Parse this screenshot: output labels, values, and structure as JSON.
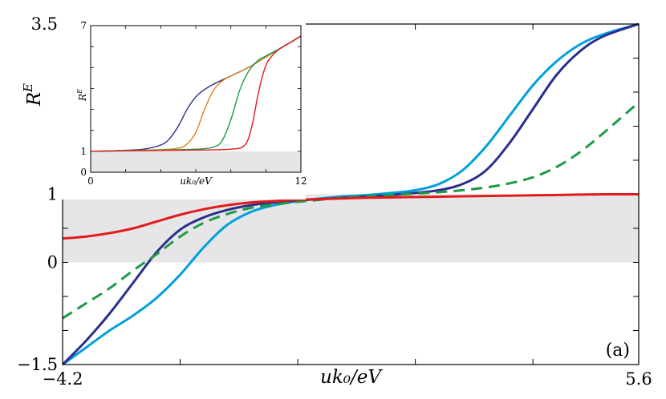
{
  "chart_data": [
    {
      "type": "line",
      "xlabel": "uk₀/eV",
      "ylabel": "R",
      "ylabel_sup": "E",
      "xlim": [
        -4.2,
        5.6
      ],
      "ylim": [
        -1.5,
        3.5
      ],
      "xtick_labels": [
        "−4.2",
        "5.6"
      ],
      "ytick_labels": [
        "−1.5",
        "0",
        "1",
        "3.5"
      ],
      "shaded_band": [
        0,
        1
      ],
      "shade_color": "#e6e6e8",
      "panel_label": "(a)",
      "series": [
        {
          "color": "#00a0dc",
          "dash": "solid",
          "x": [
            -4.2,
            -3.8,
            -3.4,
            -3.0,
            -2.6,
            -2.2,
            -1.8,
            -1.4,
            -1.0,
            -0.6,
            -0.2,
            0.2,
            0.6,
            1.0,
            1.4,
            1.8,
            2.2,
            2.6,
            3.0,
            3.4,
            3.8,
            4.2,
            4.6,
            5.0,
            5.6
          ],
          "y": [
            -1.5,
            -1.25,
            -1.0,
            -0.78,
            -0.52,
            -0.18,
            0.22,
            0.55,
            0.74,
            0.84,
            0.9,
            0.94,
            0.97,
            0.99,
            1.02,
            1.06,
            1.15,
            1.35,
            1.7,
            2.15,
            2.6,
            2.95,
            3.2,
            3.35,
            3.5
          ]
        },
        {
          "color": "#2b2f8c",
          "dash": "solid",
          "x": [
            -4.2,
            -3.8,
            -3.4,
            -3.0,
            -2.6,
            -2.2,
            -1.8,
            -1.4,
            -1.0,
            -0.6,
            -0.2,
            0.2,
            0.6,
            1.0,
            1.4,
            1.8,
            2.2,
            2.6,
            3.0,
            3.4,
            3.8,
            4.2,
            4.6,
            5.0,
            5.6
          ],
          "y": [
            -1.5,
            -1.15,
            -0.75,
            -0.3,
            0.15,
            0.48,
            0.66,
            0.77,
            0.84,
            0.88,
            0.91,
            0.93,
            0.95,
            0.97,
            0.99,
            1.02,
            1.06,
            1.15,
            1.35,
            1.75,
            2.25,
            2.75,
            3.1,
            3.32,
            3.5
          ]
        },
        {
          "color": "#1d9a47",
          "dash": "dashed",
          "x": [
            -4.2,
            -3.8,
            -3.4,
            -3.0,
            -2.6,
            -2.2,
            -1.8,
            -1.4,
            -1.0,
            -0.6,
            -0.2,
            0.2,
            0.6,
            1.0,
            1.4,
            1.8,
            2.2,
            2.6,
            3.0,
            3.4,
            3.8,
            4.2,
            4.6,
            5.0,
            5.6
          ],
          "y": [
            -0.82,
            -0.6,
            -0.38,
            -0.12,
            0.12,
            0.38,
            0.58,
            0.71,
            0.8,
            0.85,
            0.89,
            0.92,
            0.95,
            0.97,
            0.99,
            1.01,
            1.03,
            1.06,
            1.1,
            1.16,
            1.25,
            1.4,
            1.62,
            1.9,
            2.35
          ]
        },
        {
          "color": "#e41a1c",
          "dash": "solid",
          "x": [
            -4.2,
            -3.8,
            -3.4,
            -3.0,
            -2.6,
            -2.2,
            -1.8,
            -1.4,
            -1.0,
            -0.6,
            -0.2,
            0.2,
            0.6,
            1.0,
            1.4,
            1.8,
            2.2,
            2.6,
            3.0,
            3.4,
            3.8,
            4.2,
            4.6,
            5.0,
            5.6
          ],
          "y": [
            0.35,
            0.38,
            0.43,
            0.5,
            0.6,
            0.7,
            0.78,
            0.84,
            0.88,
            0.9,
            0.92,
            0.93,
            0.94,
            0.95,
            0.955,
            0.96,
            0.965,
            0.97,
            0.975,
            0.98,
            0.985,
            0.99,
            0.995,
            1.0,
            1.0
          ]
        }
      ]
    },
    {
      "type": "line",
      "xlabel": "uk₀/eV",
      "ylabel": "R",
      "ylabel_sup": "E",
      "xlim": [
        0,
        12
      ],
      "ylim": [
        0,
        7
      ],
      "xtick_labels": [
        "0",
        "12"
      ],
      "ytick_labels": [
        "0",
        "1",
        "7"
      ],
      "shaded_band": [
        0,
        1
      ],
      "series": [
        {
          "color": "#2b2f8c",
          "x": [
            0,
            1,
            2,
            3,
            4,
            4.5,
            5,
            5.5,
            6,
            6.5,
            7,
            8,
            9,
            10,
            11,
            12
          ],
          "y": [
            1.0,
            1.02,
            1.05,
            1.1,
            1.3,
            1.6,
            2.2,
            3.0,
            3.6,
            3.95,
            4.2,
            4.6,
            5.0,
            5.5,
            6.0,
            6.5
          ]
        },
        {
          "color": "#e07f1a",
          "x": [
            0,
            2,
            4,
            5,
            5.5,
            6,
            6.5,
            7,
            7.5,
            8,
            9,
            10,
            11,
            12
          ],
          "y": [
            1.0,
            1.04,
            1.08,
            1.15,
            1.35,
            1.9,
            3.0,
            3.9,
            4.35,
            4.6,
            5.0,
            5.5,
            6.0,
            6.5
          ]
        },
        {
          "color": "#1d9a47",
          "x": [
            0,
            2,
            4,
            6,
            7,
            7.5,
            8,
            8.5,
            9,
            9.5,
            10,
            11,
            12
          ],
          "y": [
            1.0,
            1.03,
            1.06,
            1.1,
            1.2,
            1.5,
            2.5,
            3.9,
            4.8,
            5.3,
            5.55,
            6.0,
            6.5
          ]
        },
        {
          "color": "#e41a1c",
          "x": [
            0,
            2,
            4,
            6,
            8,
            8.8,
            9.2,
            9.6,
            10.0,
            10.4,
            10.8,
            11.4,
            12
          ],
          "y": [
            1.0,
            1.02,
            1.04,
            1.06,
            1.1,
            1.3,
            2.2,
            3.9,
            5.1,
            5.6,
            5.9,
            6.2,
            6.5
          ]
        }
      ]
    }
  ]
}
